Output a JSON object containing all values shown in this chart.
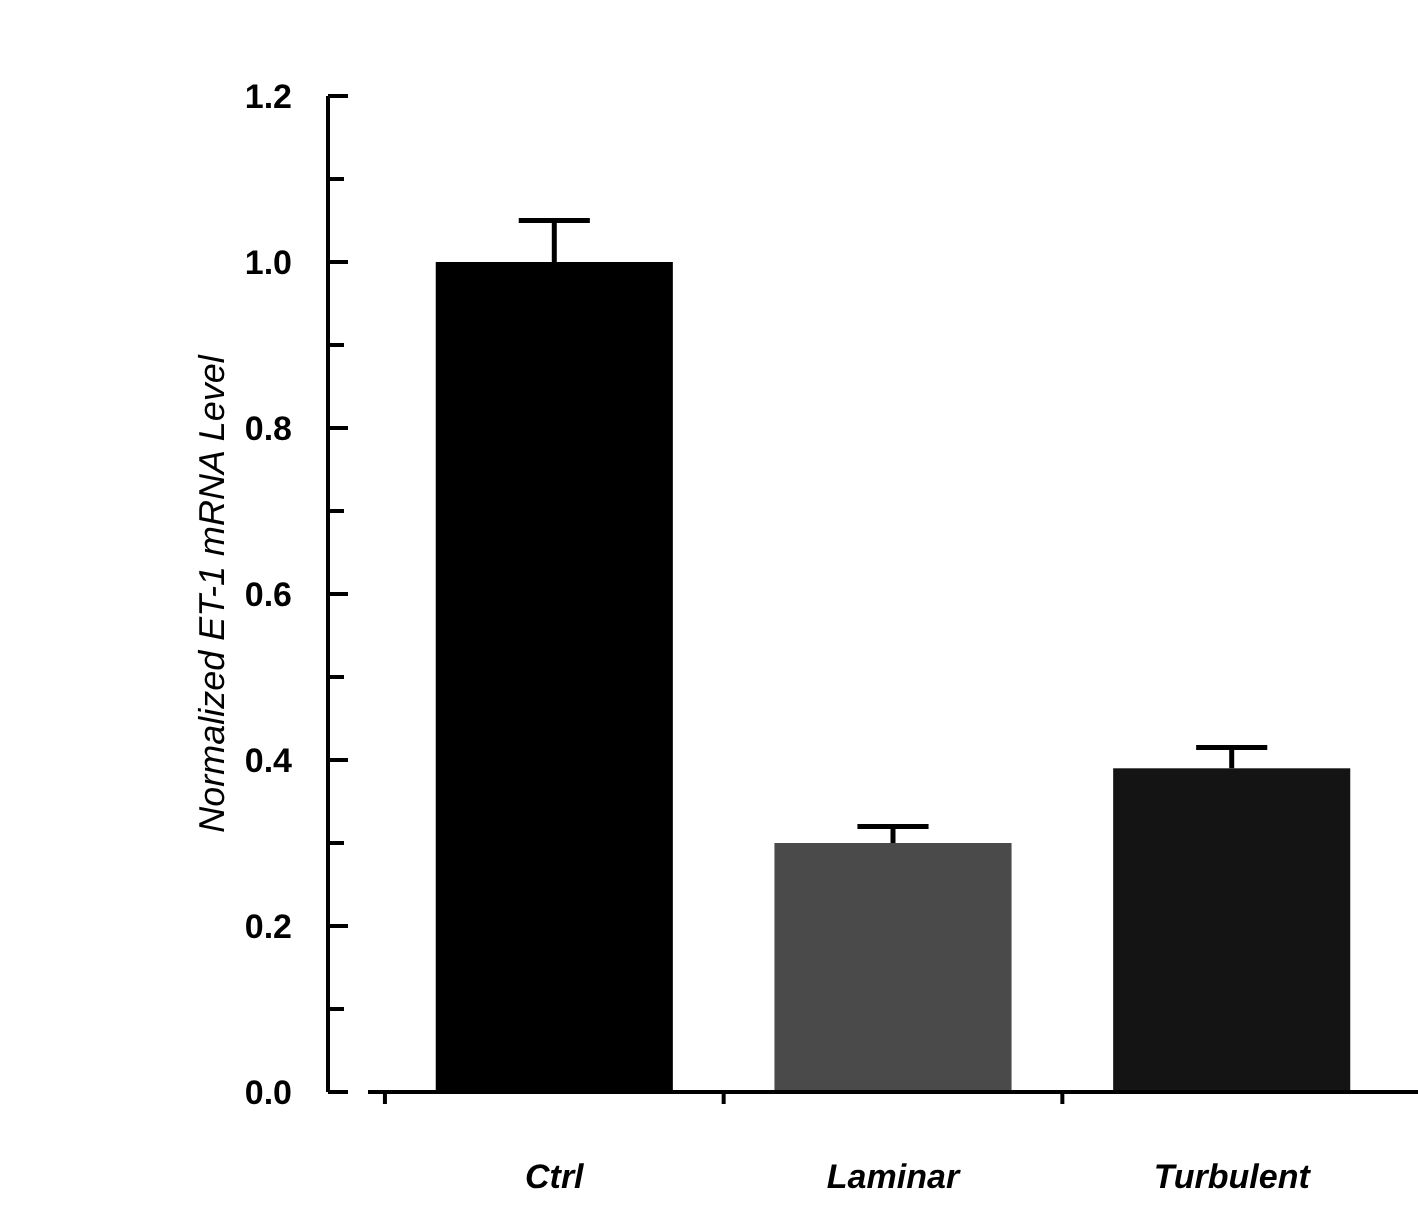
{
  "chart_data": {
    "type": "bar",
    "ylabel": "Normalized ET-1 mRNA Level",
    "categories": [
      "Ctrl",
      "Laminar",
      "Turbulent"
    ],
    "values": [
      1.0,
      0.3,
      0.39
    ],
    "colors": [
      "#000000",
      "#4a4a4a",
      "#141414"
    ],
    "errors": [
      [
        1.0,
        1.05
      ],
      [
        0.3,
        0.32
      ],
      [
        0.39,
        0.415
      ]
    ],
    "ylim": [
      0,
      1.2
    ],
    "yticks": [
      {
        "value": 0,
        "label": "0.0"
      },
      {
        "value": 0.1,
        "label": null
      },
      {
        "value": 0.2,
        "label": "0.2"
      },
      {
        "value": 0.3,
        "label": null
      },
      {
        "value": 0.4,
        "label": "0.4"
      },
      {
        "value": 0.5,
        "label": null
      },
      {
        "value": 0.6,
        "label": "0.6"
      },
      {
        "value": 0.7,
        "label": null
      },
      {
        "value": 0.8,
        "label": "0.8"
      },
      {
        "value": 0.9,
        "label": null
      },
      {
        "value": 1.0,
        "label": "1.0"
      },
      {
        "value": 1.1,
        "label": null
      },
      {
        "value": 1.2,
        "label": "1.2"
      }
    ],
    "grid": false
  }
}
